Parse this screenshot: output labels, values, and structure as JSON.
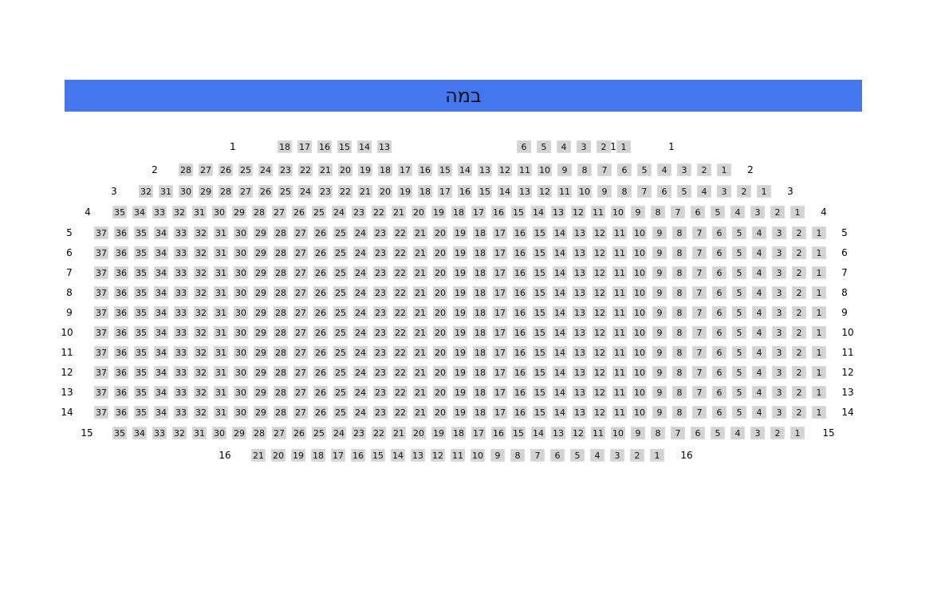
{
  "stage": {
    "label": "במה",
    "color": "#4477ee"
  },
  "seat_color": "#d3d3d3",
  "rows": [
    {
      "label": "1",
      "seats": [
        18,
        17,
        16,
        15,
        14,
        13,
        6,
        5,
        4,
        3,
        2,
        1
      ],
      "extra_label": "1"
    },
    {
      "label": "2",
      "seats": [
        28,
        27,
        26,
        25,
        24,
        23,
        22,
        21,
        20,
        19,
        18,
        17,
        16,
        15,
        14,
        13,
        12,
        11,
        10,
        9,
        8,
        7,
        6,
        5,
        4,
        3,
        2,
        1
      ]
    },
    {
      "label": "3",
      "seats": [
        32,
        31,
        30,
        29,
        28,
        27,
        26,
        25,
        24,
        23,
        22,
        21,
        20,
        19,
        18,
        17,
        16,
        15,
        14,
        13,
        12,
        11,
        10,
        9,
        8,
        7,
        6,
        5,
        4,
        3,
        2,
        1
      ]
    },
    {
      "label": "4",
      "seats": [
        35,
        34,
        33,
        32,
        31,
        30,
        29,
        28,
        27,
        26,
        25,
        24,
        23,
        22,
        21,
        20,
        19,
        18,
        17,
        16,
        15,
        14,
        13,
        12,
        11,
        10,
        9,
        8,
        7,
        6,
        5,
        4,
        3,
        2,
        1
      ]
    },
    {
      "label": "5",
      "seats": [
        37,
        36,
        35,
        34,
        33,
        32,
        31,
        30,
        29,
        28,
        27,
        26,
        25,
        24,
        23,
        22,
        21,
        20,
        19,
        18,
        17,
        16,
        15,
        14,
        13,
        12,
        11,
        10,
        9,
        8,
        7,
        6,
        5,
        4,
        3,
        2,
        1
      ]
    },
    {
      "label": "6",
      "seats": [
        37,
        36,
        35,
        34,
        33,
        32,
        31,
        30,
        29,
        28,
        27,
        26,
        25,
        24,
        23,
        22,
        21,
        20,
        19,
        18,
        17,
        16,
        15,
        14,
        13,
        12,
        11,
        10,
        9,
        8,
        7,
        6,
        5,
        4,
        3,
        2,
        1
      ]
    },
    {
      "label": "7",
      "seats": [
        37,
        36,
        35,
        34,
        33,
        32,
        31,
        30,
        29,
        28,
        27,
        26,
        25,
        24,
        23,
        22,
        21,
        20,
        19,
        18,
        17,
        16,
        15,
        14,
        13,
        12,
        11,
        10,
        9,
        8,
        7,
        6,
        5,
        4,
        3,
        2,
        1
      ]
    },
    {
      "label": "8",
      "seats": [
        37,
        36,
        35,
        34,
        33,
        32,
        31,
        30,
        29,
        28,
        27,
        26,
        25,
        24,
        23,
        22,
        21,
        20,
        19,
        18,
        17,
        16,
        15,
        14,
        13,
        12,
        11,
        10,
        9,
        8,
        7,
        6,
        5,
        4,
        3,
        2,
        1
      ]
    },
    {
      "label": "9",
      "seats": [
        37,
        36,
        35,
        34,
        33,
        32,
        31,
        30,
        29,
        28,
        27,
        26,
        25,
        24,
        23,
        22,
        21,
        20,
        19,
        18,
        17,
        16,
        15,
        14,
        13,
        12,
        11,
        10,
        9,
        8,
        7,
        6,
        5,
        4,
        3,
        2,
        1
      ]
    },
    {
      "label": "10",
      "seats": [
        37,
        36,
        35,
        34,
        33,
        32,
        31,
        30,
        29,
        28,
        27,
        26,
        25,
        24,
        23,
        22,
        21,
        20,
        19,
        18,
        17,
        16,
        15,
        14,
        13,
        12,
        11,
        10,
        9,
        8,
        7,
        6,
        5,
        4,
        3,
        2,
        1
      ]
    },
    {
      "label": "11",
      "seats": [
        37,
        36,
        35,
        34,
        33,
        32,
        31,
        30,
        29,
        28,
        27,
        26,
        25,
        24,
        23,
        22,
        21,
        20,
        19,
        18,
        17,
        16,
        15,
        14,
        13,
        12,
        11,
        10,
        9,
        8,
        7,
        6,
        5,
        4,
        3,
        2,
        1
      ]
    },
    {
      "label": "12",
      "seats": [
        37,
        36,
        35,
        34,
        33,
        32,
        31,
        30,
        29,
        28,
        27,
        26,
        25,
        24,
        23,
        22,
        21,
        20,
        19,
        18,
        17,
        16,
        15,
        14,
        13,
        12,
        11,
        10,
        9,
        8,
        7,
        6,
        5,
        4,
        3,
        2,
        1
      ]
    },
    {
      "label": "13",
      "seats": [
        37,
        36,
        35,
        34,
        33,
        32,
        31,
        30,
        29,
        28,
        27,
        26,
        25,
        24,
        23,
        22,
        21,
        20,
        19,
        18,
        17,
        16,
        15,
        14,
        13,
        12,
        11,
        10,
        9,
        8,
        7,
        6,
        5,
        4,
        3,
        2,
        1
      ]
    },
    {
      "label": "14",
      "seats": [
        37,
        36,
        35,
        34,
        33,
        32,
        31,
        30,
        29,
        28,
        27,
        26,
        25,
        24,
        23,
        22,
        21,
        20,
        19,
        18,
        17,
        16,
        15,
        14,
        13,
        12,
        11,
        10,
        9,
        8,
        7,
        6,
        5,
        4,
        3,
        2,
        1
      ]
    },
    {
      "label": "15",
      "seats": [
        35,
        34,
        33,
        32,
        31,
        30,
        29,
        28,
        27,
        26,
        25,
        24,
        23,
        22,
        21,
        20,
        19,
        18,
        17,
        16,
        15,
        14,
        13,
        12,
        11,
        10,
        9,
        8,
        7,
        6,
        5,
        4,
        3,
        2,
        1
      ]
    },
    {
      "label": "16",
      "seats": [
        21,
        20,
        19,
        18,
        17,
        16,
        15,
        14,
        13,
        12,
        11,
        10,
        9,
        8,
        7,
        6,
        5,
        4,
        3,
        2,
        1
      ]
    }
  ]
}
